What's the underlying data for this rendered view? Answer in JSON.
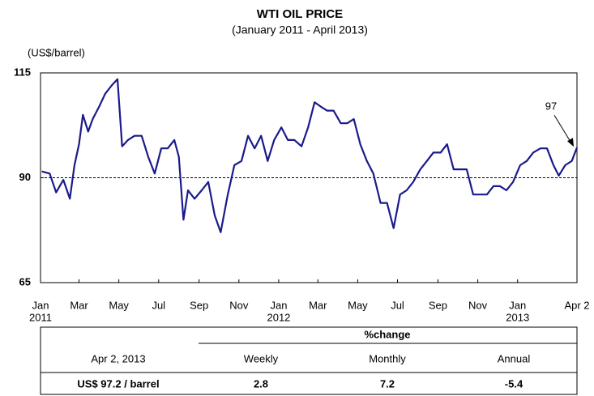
{
  "chart_data": {
    "type": "line",
    "title": "WTI OIL PRICE",
    "subtitle": "(January 2011 - April 2013)",
    "y_label": "(US$/barrel)",
    "color": "#1a1a8c",
    "ylim": [
      65,
      115
    ],
    "yticks": [
      65,
      90,
      115
    ],
    "reference_line": 90,
    "annotation": "97",
    "xlim": [
      "2011-01-01",
      "2013-04-02"
    ],
    "xticks": [
      {
        "value": "2011-01-01",
        "label": "Jan",
        "year": "2011"
      },
      {
        "value": "2011-03-01",
        "label": "Mar"
      },
      {
        "value": "2011-05-01",
        "label": "May"
      },
      {
        "value": "2011-07-01",
        "label": "Jul"
      },
      {
        "value": "2011-09-01",
        "label": "Sep"
      },
      {
        "value": "2011-11-01",
        "label": "Nov"
      },
      {
        "value": "2012-01-01",
        "label": "Jan",
        "year": "2012"
      },
      {
        "value": "2012-03-01",
        "label": "Mar"
      },
      {
        "value": "2012-05-01",
        "label": "May"
      },
      {
        "value": "2012-07-01",
        "label": "Jul"
      },
      {
        "value": "2012-09-01",
        "label": "Sep"
      },
      {
        "value": "2012-11-01",
        "label": "Nov"
      },
      {
        "value": "2013-01-01",
        "label": "Jan",
        "year": "2013"
      },
      {
        "value": "2013-04-02",
        "label": "Apr 2"
      }
    ],
    "x": [
      "2011-01-03",
      "2011-01-15",
      "2011-01-25",
      "2011-02-05",
      "2011-02-15",
      "2011-02-22",
      "2011-03-01",
      "2011-03-07",
      "2011-03-15",
      "2011-03-22",
      "2011-04-01",
      "2011-04-10",
      "2011-04-20",
      "2011-04-29",
      "2011-05-06",
      "2011-05-15",
      "2011-05-25",
      "2011-06-05",
      "2011-06-15",
      "2011-06-25",
      "2011-07-05",
      "2011-07-15",
      "2011-07-25",
      "2011-08-01",
      "2011-08-08",
      "2011-08-15",
      "2011-08-25",
      "2011-09-05",
      "2011-09-15",
      "2011-09-25",
      "2011-10-04",
      "2011-10-15",
      "2011-10-25",
      "2011-11-05",
      "2011-11-15",
      "2011-11-25",
      "2011-12-05",
      "2011-12-15",
      "2011-12-25",
      "2012-01-05",
      "2012-01-15",
      "2012-01-25",
      "2012-02-05",
      "2012-02-15",
      "2012-02-25",
      "2012-03-05",
      "2012-03-15",
      "2012-03-25",
      "2012-04-05",
      "2012-04-15",
      "2012-04-25",
      "2012-05-05",
      "2012-05-15",
      "2012-05-25",
      "2012-06-05",
      "2012-06-15",
      "2012-06-25",
      "2012-07-05",
      "2012-07-15",
      "2012-07-25",
      "2012-08-05",
      "2012-08-15",
      "2012-08-25",
      "2012-09-05",
      "2012-09-15",
      "2012-09-25",
      "2012-10-05",
      "2012-10-15",
      "2012-10-25",
      "2012-11-05",
      "2012-11-15",
      "2012-11-25",
      "2012-12-05",
      "2012-12-15",
      "2012-12-25",
      "2013-01-05",
      "2013-01-15",
      "2013-01-25",
      "2013-02-05",
      "2013-02-15",
      "2013-02-25",
      "2013-03-05",
      "2013-03-15",
      "2013-03-25",
      "2013-04-02"
    ],
    "values": [
      91.5,
      91,
      86.5,
      89.5,
      85,
      93,
      98,
      105,
      101,
      104,
      107,
      110,
      112,
      113.5,
      97.5,
      99,
      100,
      100,
      95,
      91,
      97,
      97,
      99,
      95,
      80,
      87,
      85,
      87,
      89,
      81,
      77,
      86,
      93,
      94,
      100,
      97,
      100,
      94,
      99,
      102,
      99,
      99,
      97.5,
      102,
      108,
      107,
      106,
      106,
      103,
      103,
      104,
      98,
      94,
      91,
      84,
      84,
      78,
      86,
      87,
      89,
      92,
      94,
      96,
      96,
      98,
      92,
      92,
      92,
      86,
      86,
      86,
      88,
      88,
      87,
      89,
      93,
      94,
      96,
      97,
      97,
      93,
      90.5,
      93,
      94,
      97.2
    ]
  },
  "table": {
    "group_header": "%change",
    "header": [
      "Apr 2, 2013",
      "Weekly",
      "Monthly",
      "Annual"
    ],
    "row": [
      "US$  97.2 / barrel",
      "2.8",
      "7.2",
      "-5.4"
    ]
  }
}
